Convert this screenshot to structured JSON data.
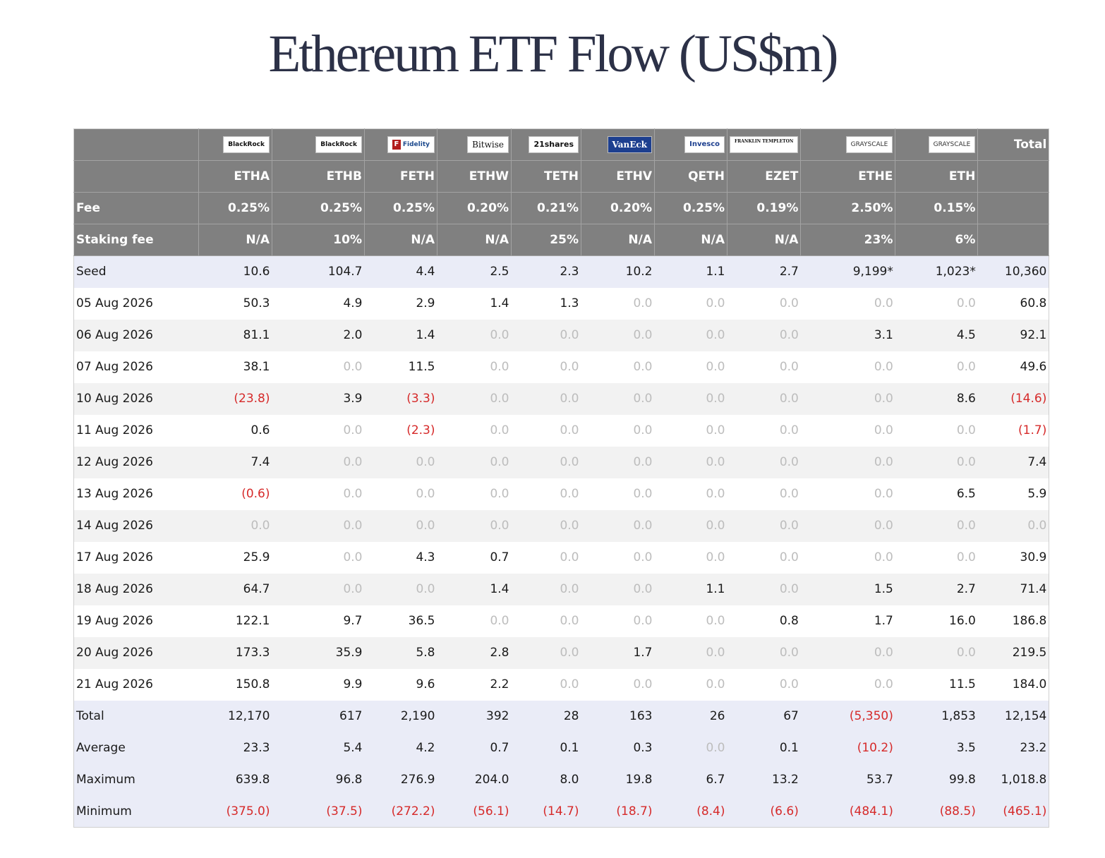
{
  "title": "Ethereum ETF Flow (US$m)",
  "total_label": "Total",
  "issuers": [
    {
      "logo": "BlackRock",
      "icon": "blackrock-logo",
      "style": ""
    },
    {
      "logo": "BlackRock",
      "icon": "blackrock-logo",
      "style": ""
    },
    {
      "logo": "Fidelity",
      "icon": "fidelity-logo",
      "style": "fid"
    },
    {
      "logo": "Bitwise",
      "icon": "bitwise-logo",
      "style": "bitwise"
    },
    {
      "logo": "21shares",
      "icon": "21shares-logo",
      "style": "twentyone"
    },
    {
      "logo": "VanEck",
      "icon": "vaneck-logo",
      "style": "vaneck"
    },
    {
      "logo": "Invesco",
      "icon": "invesco-logo",
      "style": "invesco"
    },
    {
      "logo": "FRANKLIN TEMPLETON",
      "icon": "franklin-templeton-logo",
      "style": "franklin"
    },
    {
      "logo": "GRAYSCALE",
      "icon": "grayscale-logo",
      "style": "gray"
    },
    {
      "logo": "GRAYSCALE",
      "icon": "grayscale-logo",
      "style": "gray"
    }
  ],
  "tickers": [
    "ETHA",
    "ETHB",
    "FETH",
    "ETHW",
    "TETH",
    "ETHV",
    "QETH",
    "EZET",
    "ETHE",
    "ETH"
  ],
  "fee": {
    "label": "Fee",
    "values": [
      "0.25%",
      "0.25%",
      "0.25%",
      "0.20%",
      "0.21%",
      "0.20%",
      "0.25%",
      "0.19%",
      "2.50%",
      "0.15%"
    ]
  },
  "staking_fee": {
    "label": "Staking fee",
    "values": [
      "N/A",
      "10%",
      "N/A",
      "N/A",
      "25%",
      "N/A",
      "N/A",
      "N/A",
      "23%",
      "6%"
    ]
  },
  "seed": {
    "label": "Seed",
    "values": [
      "10.6",
      "104.7",
      "4.4",
      "2.5",
      "2.3",
      "10.2",
      "1.1",
      "2.7",
      "9,199*",
      "1,023*",
      "10,360"
    ]
  },
  "rows": [
    {
      "date": "05 Aug 2026",
      "values": [
        "50.3",
        "4.9",
        "2.9",
        "1.4",
        "1.3",
        "0.0",
        "0.0",
        "0.0",
        "0.0",
        "0.0",
        "60.8"
      ]
    },
    {
      "date": "06 Aug 2026",
      "values": [
        "81.1",
        "2.0",
        "1.4",
        "0.0",
        "0.0",
        "0.0",
        "0.0",
        "0.0",
        "3.1",
        "4.5",
        "92.1"
      ]
    },
    {
      "date": "07 Aug 2026",
      "values": [
        "38.1",
        "0.0",
        "11.5",
        "0.0",
        "0.0",
        "0.0",
        "0.0",
        "0.0",
        "0.0",
        "0.0",
        "49.6"
      ]
    },
    {
      "date": "10 Aug 2026",
      "values": [
        "(23.8)",
        "3.9",
        "(3.3)",
        "0.0",
        "0.0",
        "0.0",
        "0.0",
        "0.0",
        "0.0",
        "8.6",
        "(14.6)"
      ]
    },
    {
      "date": "11 Aug 2026",
      "values": [
        "0.6",
        "0.0",
        "(2.3)",
        "0.0",
        "0.0",
        "0.0",
        "0.0",
        "0.0",
        "0.0",
        "0.0",
        "(1.7)"
      ]
    },
    {
      "date": "12 Aug 2026",
      "values": [
        "7.4",
        "0.0",
        "0.0",
        "0.0",
        "0.0",
        "0.0",
        "0.0",
        "0.0",
        "0.0",
        "0.0",
        "7.4"
      ]
    },
    {
      "date": "13 Aug 2026",
      "values": [
        "(0.6)",
        "0.0",
        "0.0",
        "0.0",
        "0.0",
        "0.0",
        "0.0",
        "0.0",
        "0.0",
        "6.5",
        "5.9"
      ]
    },
    {
      "date": "14 Aug 2026",
      "values": [
        "0.0",
        "0.0",
        "0.0",
        "0.0",
        "0.0",
        "0.0",
        "0.0",
        "0.0",
        "0.0",
        "0.0",
        "0.0"
      ]
    },
    {
      "date": "17 Aug 2026",
      "values": [
        "25.9",
        "0.0",
        "4.3",
        "0.7",
        "0.0",
        "0.0",
        "0.0",
        "0.0",
        "0.0",
        "0.0",
        "30.9"
      ]
    },
    {
      "date": "18 Aug 2026",
      "values": [
        "64.7",
        "0.0",
        "0.0",
        "1.4",
        "0.0",
        "0.0",
        "1.1",
        "0.0",
        "1.5",
        "2.7",
        "71.4"
      ]
    },
    {
      "date": "19 Aug 2026",
      "values": [
        "122.1",
        "9.7",
        "36.5",
        "0.0",
        "0.0",
        "0.0",
        "0.0",
        "0.8",
        "1.7",
        "16.0",
        "186.8"
      ]
    },
    {
      "date": "20 Aug 2026",
      "values": [
        "173.3",
        "35.9",
        "5.8",
        "2.8",
        "0.0",
        "1.7",
        "0.0",
        "0.0",
        "0.0",
        "0.0",
        "219.5"
      ]
    },
    {
      "date": "21 Aug 2026",
      "values": [
        "150.8",
        "9.9",
        "9.6",
        "2.2",
        "0.0",
        "0.0",
        "0.0",
        "0.0",
        "0.0",
        "11.5",
        "184.0"
      ]
    }
  ],
  "summary": [
    {
      "label": "Total",
      "values": [
        "12,170",
        "617",
        "2,190",
        "392",
        "28",
        "163",
        "26",
        "67",
        "(5,350)",
        "1,853",
        "12,154"
      ]
    },
    {
      "label": "Average",
      "values": [
        "23.3",
        "5.4",
        "4.2",
        "0.7",
        "0.1",
        "0.3",
        "0.0",
        "0.1",
        "(10.2)",
        "3.5",
        "23.2"
      ]
    },
    {
      "label": "Maximum",
      "values": [
        "639.8",
        "96.8",
        "276.9",
        "204.0",
        "8.0",
        "19.8",
        "6.7",
        "13.2",
        "53.7",
        "99.8",
        "1,018.8"
      ]
    },
    {
      "label": "Minimum",
      "values": [
        "(375.0)",
        "(37.5)",
        "(272.2)",
        "(56.1)",
        "(14.7)",
        "(18.7)",
        "(8.4)",
        "(6.6)",
        "(484.1)",
        "(88.5)",
        "(465.1)"
      ]
    }
  ],
  "colors": {
    "header_bg": "#808080",
    "negative": "#d62a2a",
    "zero": "#bdbdbd",
    "seed_bg": "#eaecf7",
    "stripe_bg": "#f2f2f2",
    "title": "#2c3147"
  }
}
